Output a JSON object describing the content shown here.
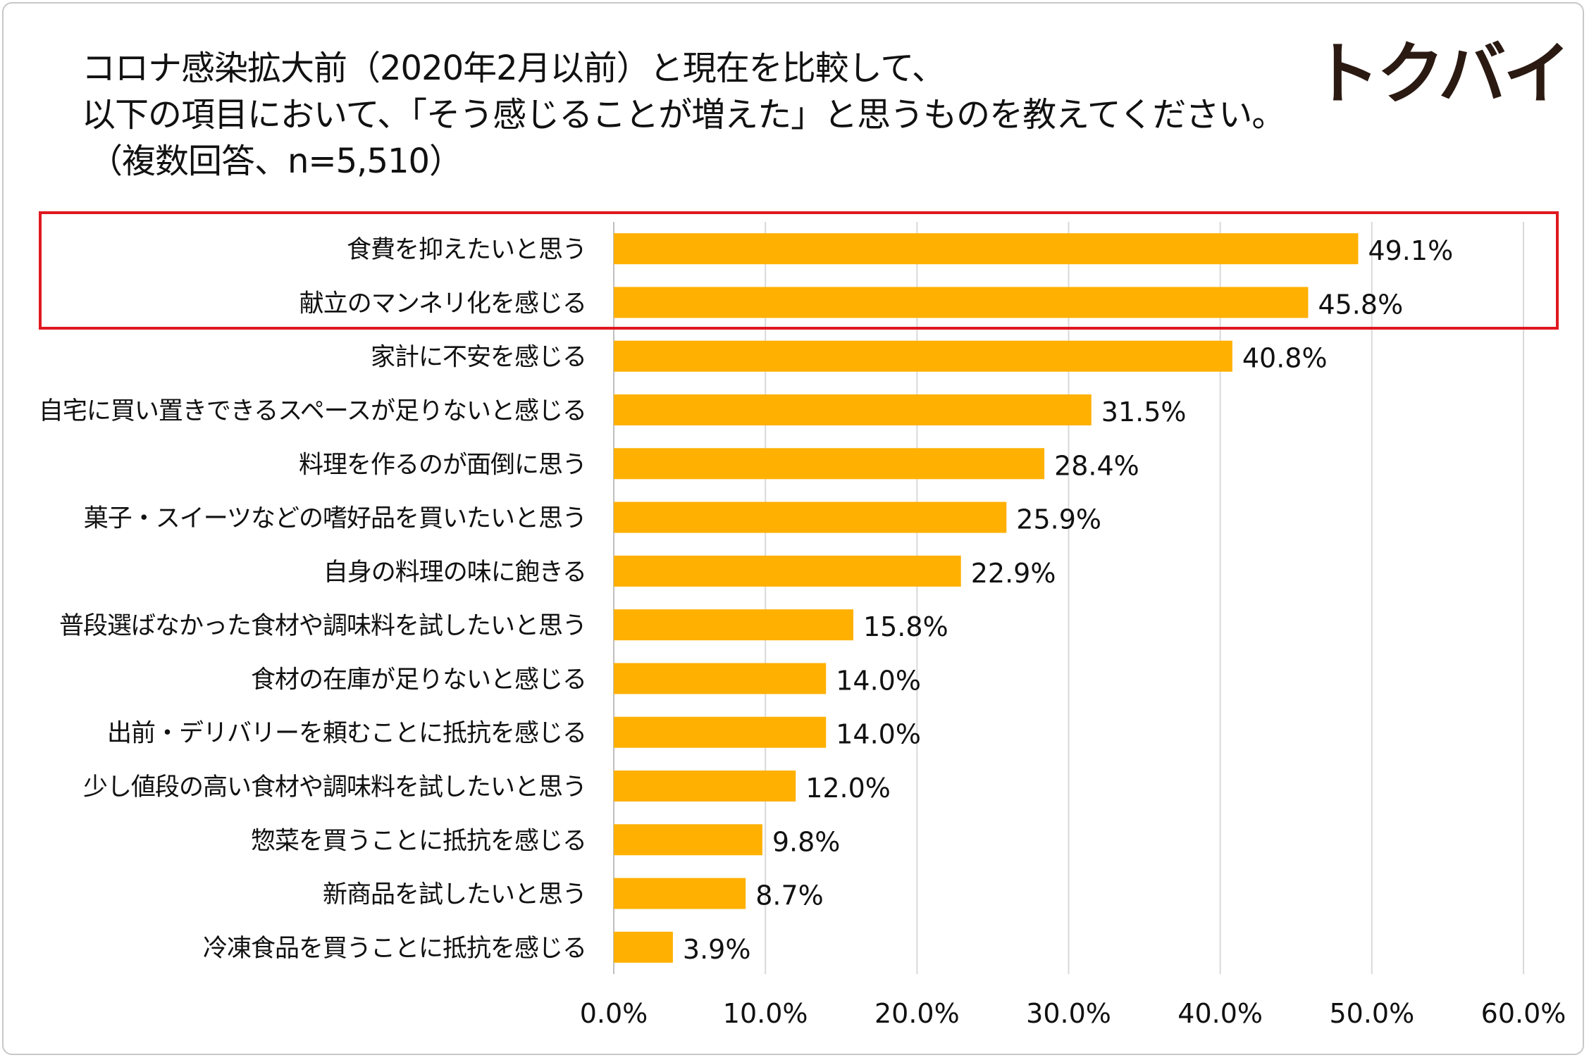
{
  "title": {
    "line1": "コロナ感染拡大前（2020年2月以前）と現在を比較して、",
    "line2": "以下の項目において、「そう感じることが増えた」と思うものを教えてください。",
    "line3": "（複数回答、n=5,510）"
  },
  "logo": {
    "text": "トクバイ"
  },
  "colors": {
    "bar": "#ffb000",
    "grid": "#d9d9d9",
    "highlight": "#e0181f",
    "axis": "#bfbfbf"
  },
  "chart_data": {
    "type": "bar",
    "orientation": "horizontal",
    "title": "コロナ感染拡大前（2020年2月以前）と現在を比較して、以下の項目において、「そう感じることが増えた」と思うものを教えてください。（複数回答、n=5,510）",
    "categories": [
      "食費を抑えたいと思う",
      "献立のマンネリ化を感じる",
      "家計に不安を感じる",
      "自宅に買い置きできるスペースが足りないと感じる",
      "料理を作るのが面倒に思う",
      "菓子・スイーツなどの嗜好品を買いたいと思う",
      "自身の料理の味に飽きる",
      "普段選ばなかった食材や調味料を試したいと思う",
      "食材の在庫が足りないと感じる",
      "出前・デリバリーを頼むことに抵抗を感じる",
      "少し値段の高い食材や調味料を試したいと思う",
      "惣菜を買うことに抵抗を感じる",
      "新商品を試したいと思う",
      "冷凍食品を買うことに抵抗を感じる"
    ],
    "values": [
      49.1,
      45.8,
      40.8,
      31.5,
      28.4,
      25.9,
      22.9,
      15.8,
      14.0,
      14.0,
      12.0,
      9.8,
      8.7,
      3.9
    ],
    "value_labels": [
      "49.1%",
      "45.8%",
      "40.8%",
      "31.5%",
      "28.4%",
      "25.9%",
      "22.9%",
      "15.8%",
      "14.0%",
      "14.0%",
      "12.0%",
      "9.8%",
      "8.7%",
      "3.9%"
    ],
    "xlim": [
      0,
      60
    ],
    "xticks": [
      0,
      10,
      20,
      30,
      40,
      50,
      60
    ],
    "xtick_labels": [
      "0.0%",
      "10.0%",
      "20.0%",
      "30.0%",
      "40.0%",
      "50.0%",
      "60.0%"
    ],
    "highlighted_categories": [
      "食費を抑えたいと思う",
      "献立のマンネリ化を感じる"
    ],
    "grid": true,
    "xlabel": "",
    "ylabel": ""
  }
}
